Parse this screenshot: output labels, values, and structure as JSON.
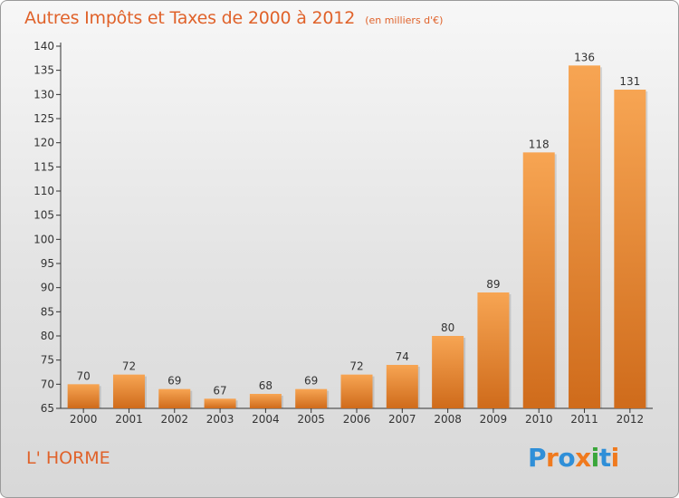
{
  "header": {
    "title": "Autres Impôts et Taxes de 2000 à 2012",
    "subtitle": "(en milliers d'€)"
  },
  "footer": {
    "commune": "L' HORME",
    "logo_text": "Proxiti",
    "logo_letters": [
      {
        "ch": "P",
        "color": "#2f8fd8"
      },
      {
        "ch": "r",
        "color": "#f07a1e"
      },
      {
        "ch": "o",
        "color": "#2f8fd8"
      },
      {
        "ch": "x",
        "color": "#f07a1e"
      },
      {
        "ch": "i",
        "color": "#3aa63a"
      },
      {
        "ch": "t",
        "color": "#2f8fd8"
      },
      {
        "ch": "i",
        "color": "#f07a1e"
      }
    ]
  },
  "colors": {
    "title": "#e0622a",
    "bar_light": "#f7a553",
    "bar_dark": "#cf6b1b",
    "axis": "#333333"
  },
  "chart_data": {
    "type": "bar",
    "categories": [
      "2000",
      "2001",
      "2002",
      "2003",
      "2004",
      "2005",
      "2006",
      "2007",
      "2008",
      "2009",
      "2010",
      "2011",
      "2012"
    ],
    "values": [
      70,
      72,
      69,
      67,
      68,
      69,
      72,
      74,
      80,
      89,
      118,
      136,
      131
    ],
    "ylim": [
      65,
      140
    ],
    "yticks": [
      65,
      70,
      75,
      80,
      85,
      90,
      95,
      100,
      105,
      110,
      115,
      120,
      125,
      130,
      135,
      140
    ],
    "grid": false,
    "title": "Autres Impôts et Taxes de 2000 à 2012",
    "xlabel": "",
    "ylabel": ""
  }
}
